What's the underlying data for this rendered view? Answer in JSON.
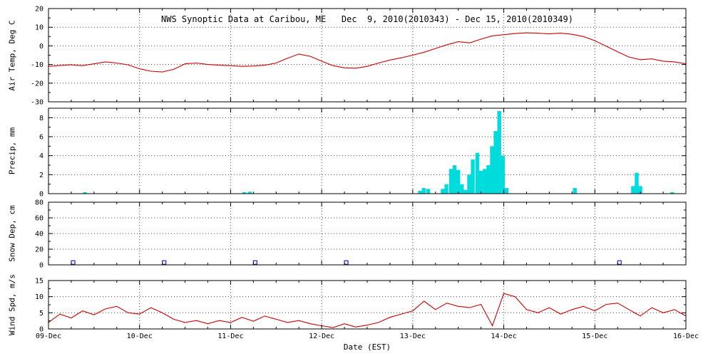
{
  "title": "NWS Synoptic Data at Caribou, ME   Dec  9, 2010(2010343) - Dec 15, 2010(2010349)",
  "xlabel": "Date (EST)",
  "x_ticks": [
    "09-Dec",
    "10-Dec",
    "11-Dec",
    "12-Dec",
    "13-Dec",
    "14-Dec",
    "15-Dec",
    "16-Dec"
  ],
  "chart_data": [
    {
      "type": "line",
      "name": "air-temp",
      "ylabel": "Air Temp, Deg C",
      "color": "#cc0000",
      "ylim": [
        -30,
        20
      ],
      "yticks": [
        -30,
        -20,
        -10,
        0,
        10,
        20
      ],
      "yminor": 5,
      "x_unit": "days since Dec 9 00:00 EST",
      "x_start": 0,
      "x_step": 0.125,
      "y": [
        -11.0,
        -10.5,
        -10.2,
        -10.6,
        -9.6,
        -8.6,
        -9.2,
        -10.2,
        -12.3,
        -13.6,
        -14.0,
        -12.6,
        -9.6,
        -9.2,
        -10.0,
        -10.4,
        -10.6,
        -11.0,
        -10.8,
        -10.4,
        -9.2,
        -6.6,
        -4.4,
        -5.6,
        -8.2,
        -10.6,
        -11.8,
        -12.0,
        -11.0,
        -9.2,
        -7.6,
        -6.4,
        -5.0,
        -3.4,
        -1.4,
        0.6,
        2.2,
        1.6,
        3.6,
        5.4,
        6.0,
        6.6,
        7.0,
        6.8,
        6.4,
        6.8,
        6.2,
        5.0,
        2.8,
        -0.2,
        -3.2,
        -6.0,
        -7.4,
        -7.0,
        -8.2,
        -8.6,
        -9.6
      ]
    },
    {
      "type": "bar",
      "name": "precip",
      "ylabel": "Precip, mm",
      "color": "#00dcdc",
      "ylim": [
        0,
        9
      ],
      "yticks": [
        0,
        2,
        4,
        6,
        8
      ],
      "yminor": 1,
      "x_unit": "days since Dec 9 00:00 EST",
      "bars": [
        [
          0.4,
          0.15
        ],
        [
          2.15,
          0.15
        ],
        [
          2.21,
          0.2
        ],
        [
          4.08,
          0.3
        ],
        [
          4.12,
          0.6
        ],
        [
          4.17,
          0.5
        ],
        [
          4.33,
          0.5
        ],
        [
          4.37,
          1.0
        ],
        [
          4.42,
          2.6
        ],
        [
          4.46,
          3.0
        ],
        [
          4.5,
          2.5
        ],
        [
          4.54,
          1.0
        ],
        [
          4.58,
          0.4
        ],
        [
          4.62,
          2.0
        ],
        [
          4.66,
          3.6
        ],
        [
          4.71,
          4.3
        ],
        [
          4.75,
          2.4
        ],
        [
          4.79,
          2.6
        ],
        [
          4.83,
          3.0
        ],
        [
          4.87,
          5.0
        ],
        [
          4.91,
          6.6
        ],
        [
          4.95,
          8.7
        ],
        [
          4.99,
          4.0
        ],
        [
          5.03,
          0.6
        ],
        [
          5.78,
          0.6
        ],
        [
          6.42,
          0.8
        ],
        [
          6.46,
          2.2
        ],
        [
          6.5,
          0.8
        ],
        [
          6.85,
          0.15
        ]
      ]
    },
    {
      "type": "scatter",
      "name": "snow-depth",
      "ylabel": "Snow Dep, cm",
      "color": "#2222bb",
      "ylim": [
        0,
        80
      ],
      "yticks": [
        0,
        20,
        40,
        60,
        80
      ],
      "yminor": 10,
      "x_unit": "days since Dec 9 00:00 EST",
      "x": [
        0.27,
        1.27,
        2.27,
        3.27,
        6.27
      ],
      "y": [
        3,
        3,
        3,
        3,
        3
      ]
    },
    {
      "type": "line",
      "name": "wind-speed",
      "ylabel": "Wind Spd, m/s",
      "color": "#cc0000",
      "ylim": [
        0,
        15
      ],
      "yticks": [
        0,
        5,
        10,
        15
      ],
      "yminor": 2.5,
      "x_unit": "days since Dec 9 00:00 EST",
      "x_start": 0,
      "x_step": 0.125,
      "y": [
        2.0,
        4.6,
        3.4,
        5.6,
        4.4,
        6.2,
        7.0,
        5.0,
        4.6,
        6.6,
        5.0,
        3.0,
        2.0,
        2.6,
        1.6,
        2.6,
        2.0,
        3.6,
        2.4,
        4.0,
        3.0,
        2.0,
        2.6,
        1.6,
        1.0,
        0.4,
        1.6,
        0.6,
        1.2,
        2.0,
        3.6,
        4.6,
        5.6,
        8.6,
        6.0,
        8.0,
        7.0,
        6.6,
        7.6,
        1.0,
        11.0,
        10.0,
        6.0,
        5.0,
        6.6,
        4.6,
        6.0,
        7.0,
        5.6,
        7.6,
        8.0,
        6.0,
        4.0,
        6.6,
        5.0,
        6.0,
        4.0
      ]
    }
  ]
}
